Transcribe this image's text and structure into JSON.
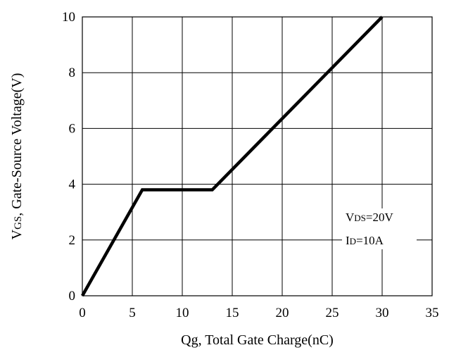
{
  "chart_data": {
    "type": "line",
    "title": "",
    "xlabel": "Qg, Total Gate Charge(nC)",
    "ylabel": {
      "main": "V",
      "sub": "GS",
      "rest": ", Gate-Source Voltage(V)"
    },
    "xlim": [
      0,
      35
    ],
    "ylim": [
      0,
      10
    ],
    "xticks": [
      0,
      5,
      10,
      15,
      20,
      25,
      30,
      35
    ],
    "yticks": [
      0,
      2,
      4,
      6,
      8,
      10
    ],
    "grid": true,
    "series": [
      {
        "x": [
          0,
          6,
          13,
          30
        ],
        "y": [
          0,
          3.8,
          3.8,
          10
        ]
      }
    ],
    "annotations": [
      {
        "main": "V",
        "sub": "DS",
        "rest": "=20V"
      },
      {
        "main": "I",
        "sub": "D",
        "rest": "=10A"
      }
    ]
  }
}
